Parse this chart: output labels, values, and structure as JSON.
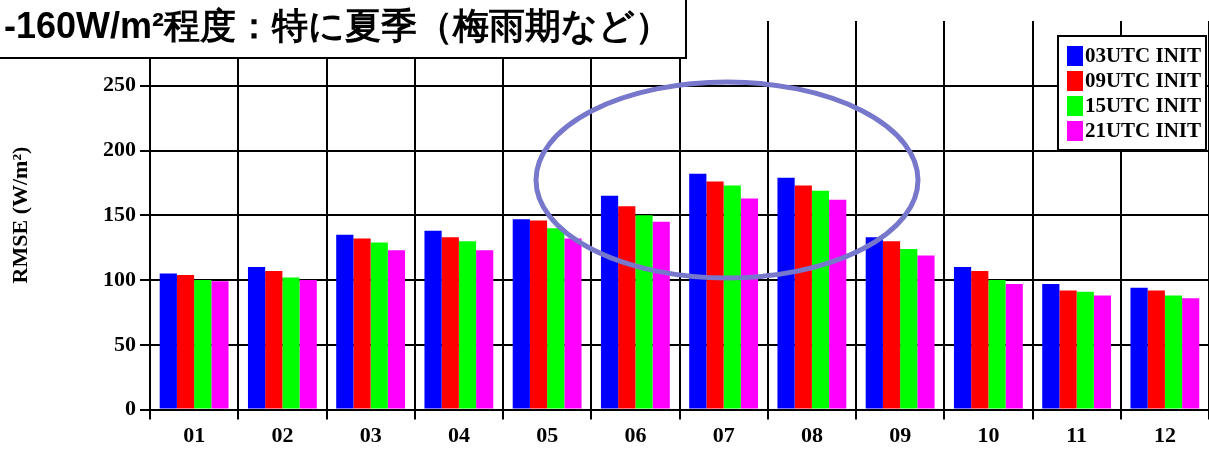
{
  "chart_data": {
    "type": "bar",
    "title": "-160W/m²程度：特に夏季（梅雨期など）",
    "ylabel": "RMSE (W/m²)",
    "categories": [
      "01",
      "02",
      "03",
      "04",
      "05",
      "06",
      "07",
      "08",
      "09",
      "10",
      "11",
      "12"
    ],
    "series": [
      {
        "name": "03UTC INIT",
        "color": "#0000ff",
        "values": [
          105,
          110,
          135,
          138,
          147,
          165,
          182,
          179,
          133,
          110,
          97,
          94
        ]
      },
      {
        "name": "09UTC INIT",
        "color": "#ff0000",
        "values": [
          104,
          107,
          132,
          133,
          146,
          157,
          176,
          173,
          130,
          107,
          92,
          92
        ]
      },
      {
        "name": "15UTC INIT",
        "color": "#00ff00",
        "values": [
          100,
          102,
          129,
          130,
          140,
          150,
          173,
          169,
          124,
          100,
          91,
          88
        ]
      },
      {
        "name": "21UTC INIT",
        "color": "#ff00ff",
        "values": [
          99,
          100,
          123,
          123,
          132,
          145,
          163,
          162,
          119,
          97,
          88,
          86
        ]
      }
    ],
    "ylim": [
      0,
      300
    ],
    "yticks": [
      0,
      50,
      100,
      150,
      200,
      250
    ],
    "grid": true,
    "legend": "top right"
  }
}
